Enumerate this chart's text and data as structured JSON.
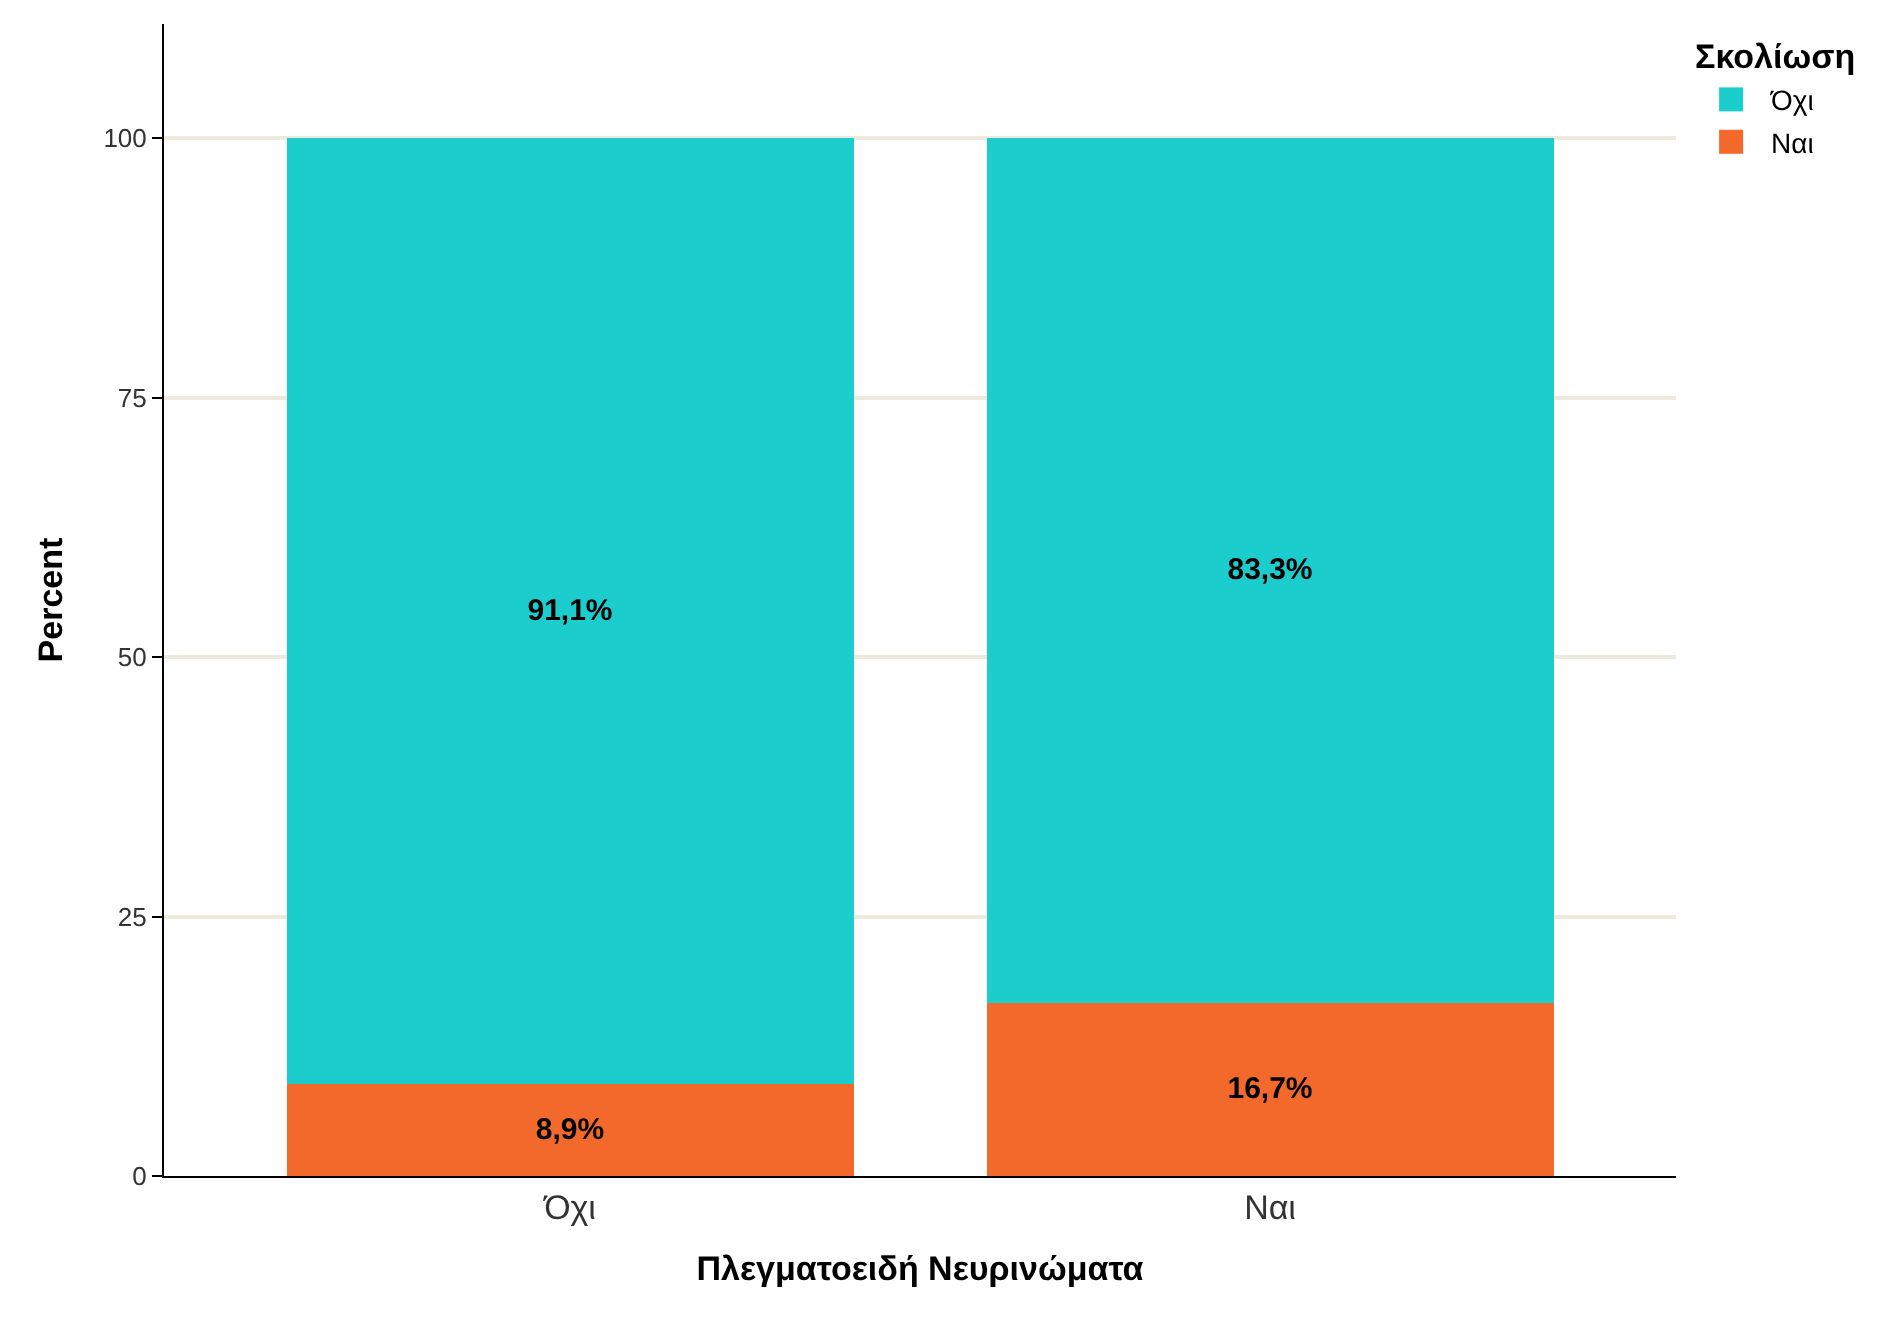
{
  "chart_data": {
    "type": "bar",
    "stacked": true,
    "xlabel": "Πλεγματοειδή Νευρινώματα",
    "ylabel": "Percent",
    "legend_title": "Σκολίωση",
    "categories": [
      "Όχι",
      "Ναι"
    ],
    "series": [
      {
        "name": "Ναι",
        "color": "#f3692b",
        "values": [
          8.9,
          16.7
        ],
        "value_labels": [
          "8,9%",
          "16,7%"
        ]
      },
      {
        "name": "Όχι",
        "color": "#1ccdcd",
        "values": [
          91.1,
          83.3
        ],
        "value_labels": [
          "91,1%",
          "83,3%"
        ]
      }
    ],
    "ylim": [
      0,
      111
    ],
    "yticks": [
      0,
      25,
      50,
      75,
      100
    ],
    "grid": "y",
    "legend": "top right"
  }
}
